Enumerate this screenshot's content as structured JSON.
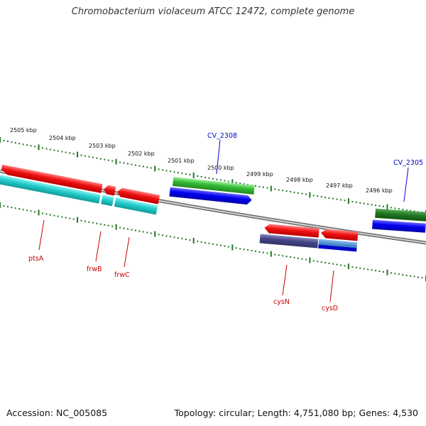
{
  "title": "Chromobacterium violaceum ATCC 12472, complete genome",
  "footer": {
    "accession": "Accession: NC_005085",
    "topology": "Topology: circular; Length: 4,751,080 bp; Genes: 4,530"
  },
  "kbp_labels": [
    "2505 kbp",
    "2504 kbp",
    "2503 kbp",
    "2502 kbp",
    "2501 kbp",
    "2500 kbp",
    "2499 kbp",
    "2498 kbp",
    "2497 kbp",
    "2496 kbp"
  ],
  "gene_labels": {
    "cv2308": "CV_2308",
    "cv2305": "CV_2305",
    "ptsA": "ptsA",
    "frwB": "frwB",
    "frwC": "frwC",
    "cysN": "cysN",
    "cysD": "cysD"
  },
  "colors": {
    "gene_red": "#ee1111",
    "gene_cyan": "#22cccc",
    "gene_green": "#33bb33",
    "gene_dark_green": "#227722",
    "gene_blue": "#0000ee",
    "gene_purple": "#444488",
    "gene_steel": "#4488cc",
    "backbone": "#888888",
    "tick_green": "#227722",
    "label_blue": "#0000cc",
    "label_red": "#cc0000"
  }
}
